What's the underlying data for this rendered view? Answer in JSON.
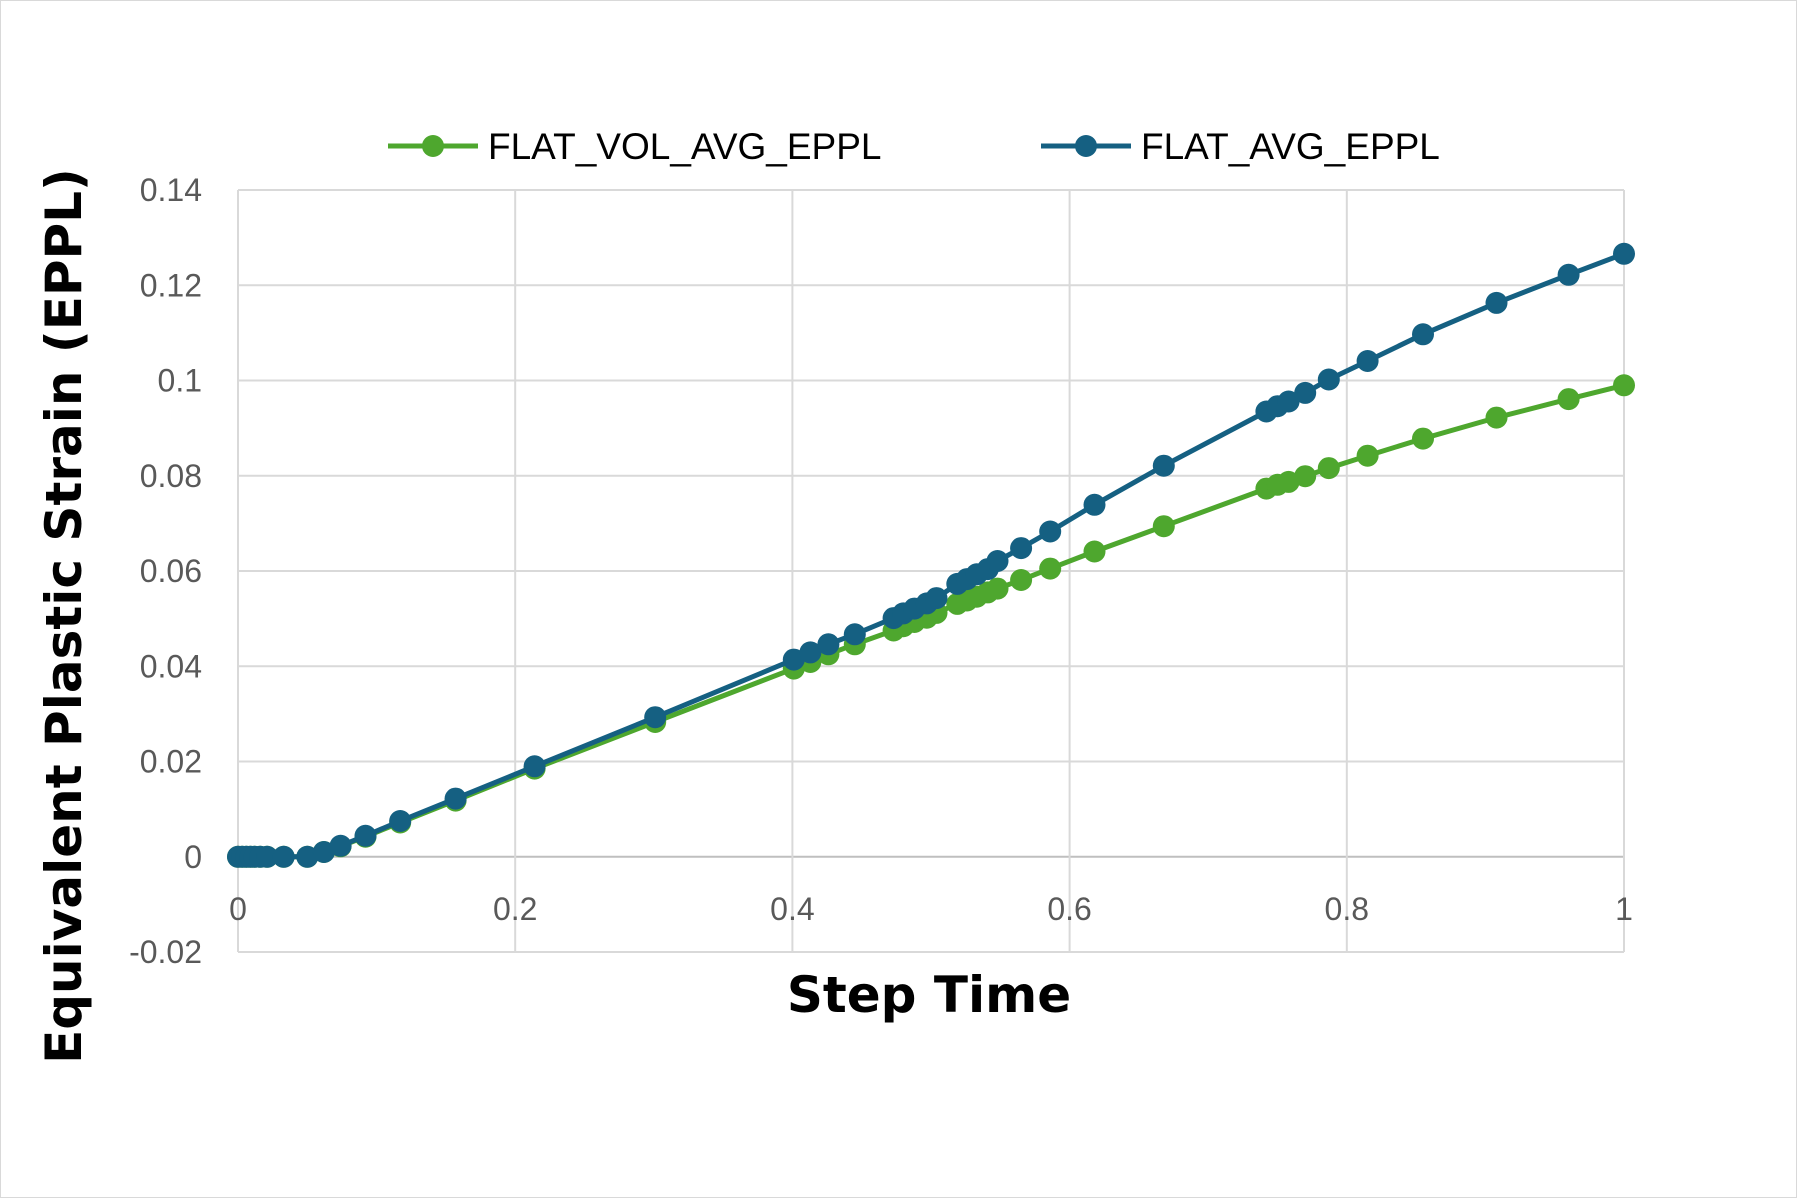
{
  "chart_data": {
    "type": "line",
    "title": "",
    "xlabel": "Step Time",
    "ylabel": "Equivalent Plastic Strain (EPPL)",
    "xlim": [
      0,
      1
    ],
    "ylim": [
      -0.02,
      0.14
    ],
    "xticks": [
      "0",
      "0.2",
      "0.4",
      "0.6",
      "0.8",
      "1"
    ],
    "yticks": [
      "-0.02",
      "0",
      "0.02",
      "0.04",
      "0.06",
      "0.08",
      "0.1",
      "0.12",
      "0.14"
    ],
    "grid": true,
    "legend_position": "top",
    "series": [
      {
        "name": "FLAT_VOL_AVG_EPPL",
        "color": "#4ea72e",
        "x": [
          0.0,
          0.003,
          0.006,
          0.009,
          0.012,
          0.016,
          0.021,
          0.033,
          0.05,
          0.062,
          0.074,
          0.092,
          0.117,
          0.157,
          0.214,
          0.301,
          0.401,
          0.413,
          0.426,
          0.445,
          0.473,
          0.48,
          0.488,
          0.497,
          0.504,
          0.519,
          0.526,
          0.533,
          0.541,
          0.548,
          0.565,
          0.586,
          0.618,
          0.668,
          0.742,
          0.75,
          0.758,
          0.77,
          0.787,
          0.815,
          0.855,
          0.908,
          0.96,
          1.0
        ],
        "y": [
          0.0,
          0.0,
          0.0,
          0.0,
          0.0,
          0.0,
          0.0,
          0.0,
          0.0,
          0.001,
          0.0022,
          0.0042,
          0.0072,
          0.0118,
          0.0185,
          0.0283,
          0.0395,
          0.0409,
          0.0425,
          0.0446,
          0.0475,
          0.0484,
          0.0493,
          0.0502,
          0.0512,
          0.0531,
          0.0538,
          0.0546,
          0.0555,
          0.0563,
          0.0581,
          0.0605,
          0.0641,
          0.0694,
          0.0773,
          0.0781,
          0.0787,
          0.0799,
          0.0816,
          0.0842,
          0.0878,
          0.0922,
          0.0961,
          0.099
        ]
      },
      {
        "name": "FLAT_AVG_EPPL",
        "color": "#156082",
        "x": [
          0.0,
          0.003,
          0.006,
          0.009,
          0.012,
          0.016,
          0.021,
          0.033,
          0.05,
          0.062,
          0.074,
          0.092,
          0.117,
          0.157,
          0.214,
          0.301,
          0.401,
          0.413,
          0.426,
          0.445,
          0.473,
          0.48,
          0.488,
          0.497,
          0.504,
          0.519,
          0.526,
          0.533,
          0.541,
          0.548,
          0.565,
          0.586,
          0.618,
          0.668,
          0.742,
          0.75,
          0.758,
          0.77,
          0.787,
          0.815,
          0.855,
          0.908,
          0.96,
          1.0
        ],
        "y": [
          0.0,
          0.0,
          0.0,
          0.0,
          0.0,
          0.0,
          0.0,
          0.0,
          0.0,
          0.001,
          0.0023,
          0.0044,
          0.0075,
          0.0122,
          0.019,
          0.0293,
          0.0414,
          0.0429,
          0.0446,
          0.0467,
          0.0501,
          0.0511,
          0.0521,
          0.0532,
          0.0543,
          0.0573,
          0.0583,
          0.0593,
          0.0604,
          0.0621,
          0.0648,
          0.0683,
          0.0739,
          0.0821,
          0.0935,
          0.0946,
          0.0956,
          0.0974,
          0.1002,
          0.1041,
          0.1097,
          0.1163,
          0.1222,
          0.1266
        ]
      }
    ]
  }
}
